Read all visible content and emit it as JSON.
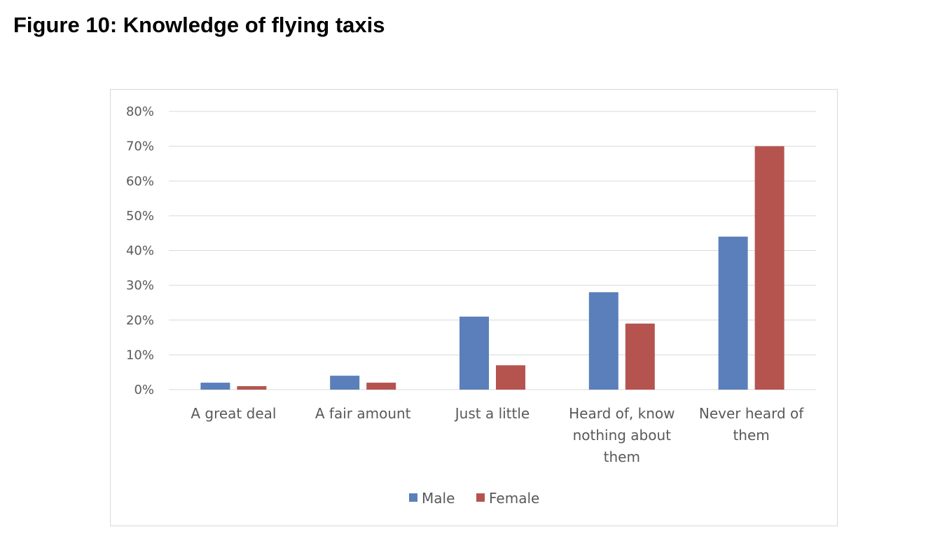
{
  "figure_title": "Figure 10: Knowledge of flying taxis",
  "chart_data": {
    "type": "bar",
    "title": "",
    "xlabel": "",
    "ylabel": "",
    "categories": [
      [
        "A great deal"
      ],
      [
        "A fair amount"
      ],
      [
        "Just a little"
      ],
      [
        "Heard of, know",
        "nothing about",
        "them"
      ],
      [
        "Never heard of",
        "them"
      ]
    ],
    "series": [
      {
        "name": "Male",
        "color": "#5b7fba",
        "values": [
          2,
          4,
          21,
          28,
          44
        ]
      },
      {
        "name": "Female",
        "color": "#b5544f",
        "values": [
          1,
          2,
          7,
          19,
          70
        ]
      }
    ],
    "ylim": [
      0,
      80
    ],
    "yticks": [
      "0%",
      "10%",
      "20%",
      "30%",
      "40%",
      "50%",
      "60%",
      "70%",
      "80%"
    ],
    "grid": true,
    "legend": "bottom-center"
  }
}
